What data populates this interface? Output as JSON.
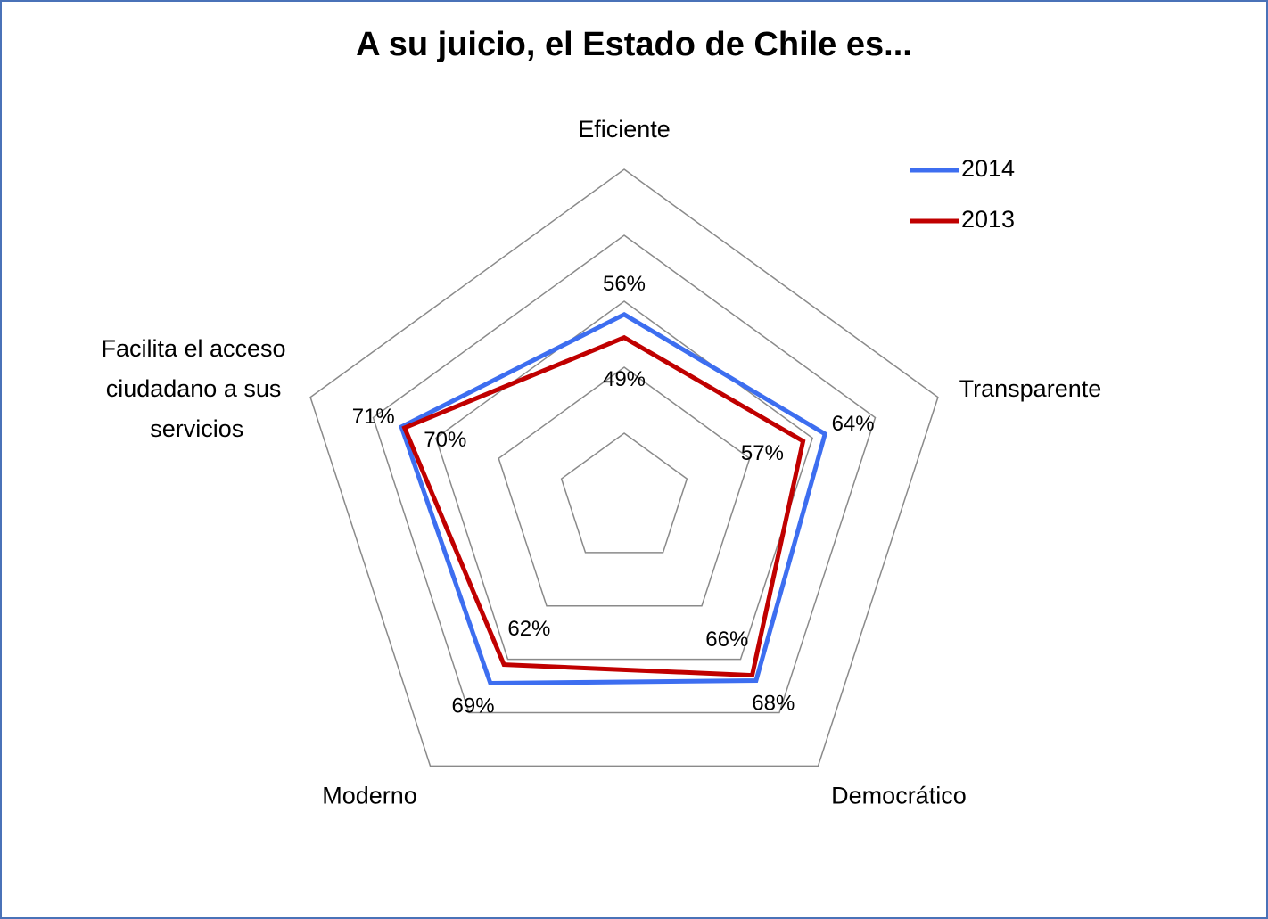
{
  "chart_data": {
    "type": "radar",
    "title": "A su juicio, el Estado de Chile es...",
    "categories": [
      "Eficiente",
      "Transparente",
      "Democrático",
      "Moderno",
      "Facilita el acceso ciudadano a sus servicios"
    ],
    "series": [
      {
        "name": "2014",
        "color": "#3d6ef0",
        "values": [
          56,
          64,
          68,
          69,
          71
        ],
        "value_labels": [
          "56%",
          "64%",
          "68%",
          "69%",
          "71%"
        ]
      },
      {
        "name": "2013",
        "color": "#c00000",
        "values": [
          49,
          57,
          66,
          62,
          70
        ],
        "value_labels": [
          "49%",
          "57%",
          "66%",
          "62%",
          "70%"
        ]
      }
    ],
    "ylim": [
      0,
      100
    ],
    "yticks": [
      20,
      40,
      60,
      80,
      100
    ],
    "grid": true,
    "legend": "top-right"
  }
}
